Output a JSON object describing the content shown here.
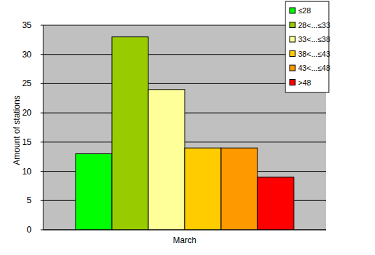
{
  "chart_data": {
    "type": "bar",
    "x_label": "March",
    "y_label": "Amount of stations",
    "categories": [
      "March"
    ],
    "series": [
      {
        "name": "≤28",
        "color": "#00ff00",
        "values": [
          13
        ]
      },
      {
        "name": "28<...≤33",
        "color": "#99cc00",
        "values": [
          33
        ]
      },
      {
        "name": "33<...≤38",
        "color": "#ffff99",
        "values": [
          24
        ]
      },
      {
        "name": "38<...≤43",
        "color": "#ffcc00",
        "values": [
          14
        ]
      },
      {
        "name": "43<...≤48",
        "color": "#ff9900",
        "values": [
          14
        ]
      },
      {
        "name": ">48",
        "color": "#ff0000",
        "values": [
          9
        ]
      }
    ],
    "ylim": [
      0,
      35
    ],
    "yticks": [
      0,
      5,
      10,
      15,
      20,
      25,
      30,
      35
    ],
    "grid": true,
    "legend": "top-right"
  }
}
